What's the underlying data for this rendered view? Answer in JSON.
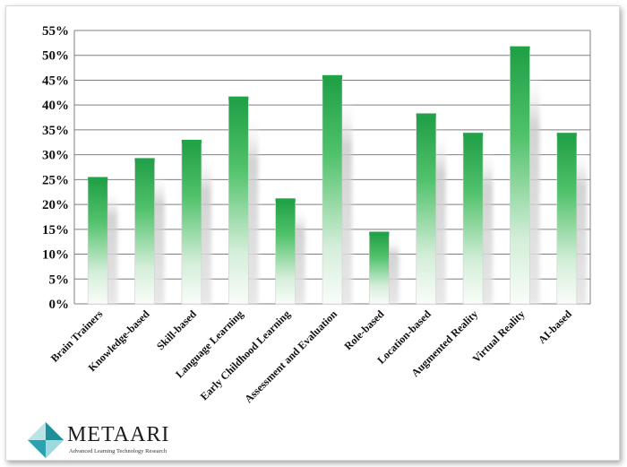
{
  "chart_data": {
    "type": "bar",
    "title": "",
    "xlabel": "",
    "ylabel": "",
    "categories": [
      "Brain Trainers",
      "Knowledge-based",
      "Skill-based",
      "Language Learning",
      "Early Childhood Learning",
      "Assessment and Evaluation",
      "Role-based",
      "Location-based",
      "Augmented Reality",
      "Virtual Reality",
      "AI-based"
    ],
    "values": [
      25.5,
      29.3,
      33.0,
      41.7,
      21.2,
      46.0,
      14.5,
      38.3,
      34.4,
      51.8,
      34.4
    ],
    "ylim": [
      0,
      55
    ],
    "ytick_step": 5,
    "ytick_format": "percent",
    "grid": true,
    "legend": "none",
    "colors": {
      "bar_top": "#21a348",
      "bar_bottom": "#ffffff",
      "grid": "#7f7f7f"
    }
  },
  "logo": {
    "name": "METAARI",
    "tagline": "Advanced Learning Technology Research",
    "colors": {
      "primary": "#1f8f9a",
      "secondary": "#6dc7cf"
    }
  }
}
